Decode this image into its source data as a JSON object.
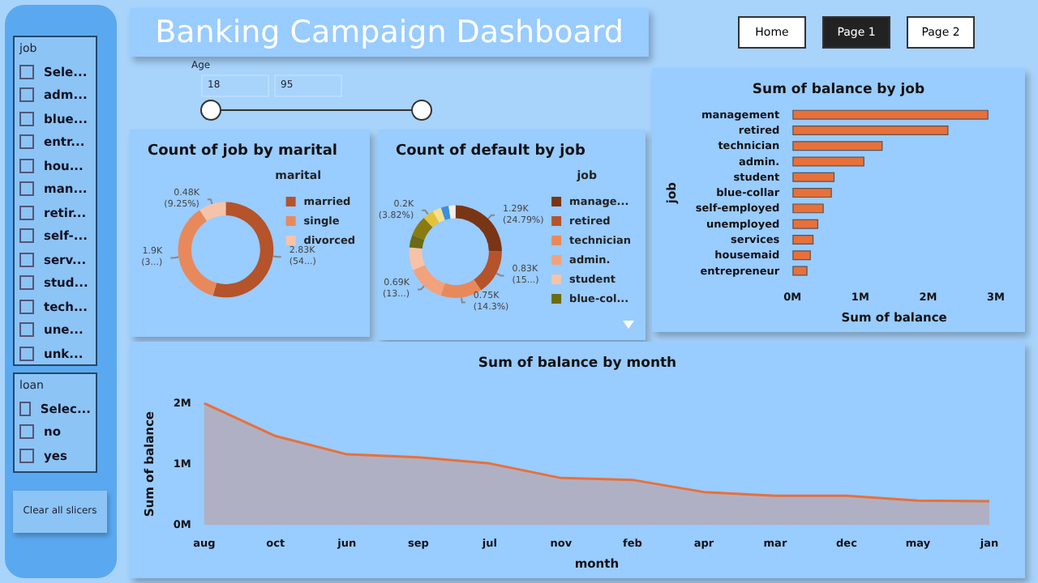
{
  "chart_data": [
    {
      "type": "other",
      "title": "Banking Campaign Dashboard"
    },
    {
      "type": "other",
      "annotations": [
        "Home",
        "Page 1",
        "Page 2"
      ]
    },
    {
      "type": "other",
      "title": "job",
      "annotations": [
        "Sele...",
        "adm...",
        "blue...",
        "entr...",
        "hou...",
        "man...",
        "retir...",
        "self-...",
        "serv...",
        "stud...",
        "tech...",
        "une...",
        "unk..."
      ]
    },
    {
      "type": "other",
      "title": "loan",
      "annotations": [
        "Selec...",
        "no",
        "yes"
      ]
    },
    {
      "type": "other",
      "annotations": [
        "Clear all slicers"
      ]
    },
    {
      "type": "other",
      "title": "Age",
      "annotations": [
        "18",
        "95"
      ]
    },
    {
      "type": "donut",
      "title": "Count of job by marital",
      "legend_title": "marital",
      "legend": "right",
      "categories": [
        "married",
        "single",
        "divorced"
      ],
      "values": [
        2830,
        1900,
        480
      ],
      "colors": [
        "#b5532a",
        "#e8895c",
        "#f6c3a8"
      ],
      "value_labels": [
        "2.83K\n(54...)",
        "1.9K\n(3...)",
        "0.48K\n(9.25%)"
      ]
    },
    {
      "type": "donut",
      "title": "Count of default by job",
      "legend_title": "job",
      "legend": "right",
      "categories": [
        "manage...",
        "retired",
        "technician",
        "admin.",
        "student",
        "blue-col...",
        null,
        null,
        null,
        null,
        null
      ],
      "values": [
        1290,
        830,
        750,
        690,
        420,
        230,
        370,
        200,
        160,
        140,
        124
      ],
      "colors": [
        "#7a3515",
        "#b5532a",
        "#e8895c",
        "#f2a27c",
        "#f6c3a8",
        "#6b6b12",
        "#8a7a10",
        "#e3c23a",
        "#f2e08a",
        "#3b8fe0",
        "#f3efe9"
      ],
      "value_labels": [
        "1.29K\n(24.79%)",
        "0.83K\n(15...)",
        "0.75K\n(14.3%)",
        "0.69K\n(13...)",
        null,
        null,
        null,
        "0.2K\n(3.82%)",
        null,
        null,
        null
      ]
    },
    {
      "type": "bar",
      "orientation": "horizontal",
      "title": "Sum of balance by job",
      "xlabel": "Sum of balance",
      "ylabel": "job",
      "categories": [
        "management",
        "retired",
        "technician",
        "admin.",
        "student",
        "blue-collar",
        "self-employed",
        "unemployed",
        "services",
        "housemaid",
        "entrepreneur"
      ],
      "values": [
        2.89,
        2.3,
        1.33,
        1.06,
        0.62,
        0.58,
        0.46,
        0.38,
        0.31,
        0.27,
        0.22
      ],
      "color": "#e8703a",
      "xlim": [
        0,
        3
      ],
      "xticks": [
        {
          "value": 0,
          "label": "0M"
        },
        {
          "value": 1,
          "label": "1M"
        },
        {
          "value": 2,
          "label": "2M"
        },
        {
          "value": 3,
          "label": "3M"
        }
      ]
    },
    {
      "type": "area",
      "title": "Sum of balance by month",
      "xlabel": "month",
      "ylabel": "Sum of balance",
      "categories": [
        "aug",
        "oct",
        "jun",
        "sep",
        "jul",
        "nov",
        "feb",
        "apr",
        "mar",
        "dec",
        "may",
        "jan"
      ],
      "values": [
        2.0,
        1.46,
        1.16,
        1.11,
        1.01,
        0.77,
        0.74,
        0.54,
        0.48,
        0.48,
        0.4,
        0.39
      ],
      "color": "#e8703a",
      "ylim": [
        0,
        2
      ],
      "yticks": [
        {
          "value": 0,
          "label": "0M"
        },
        {
          "value": 1,
          "label": "1M"
        },
        {
          "value": 2,
          "label": "2M"
        }
      ]
    }
  ]
}
